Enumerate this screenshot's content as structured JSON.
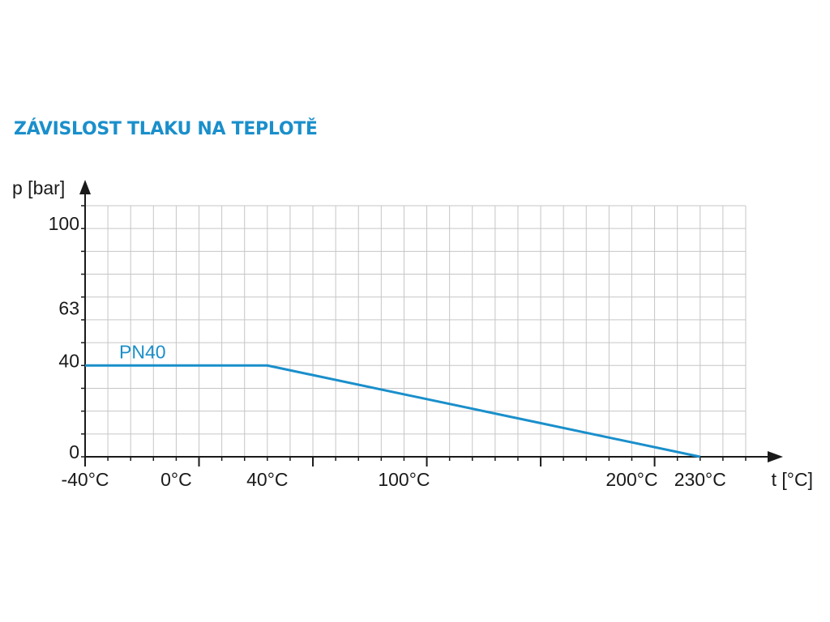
{
  "colors": {
    "accent": "#1a8fcb",
    "grid": "#c6c6c6",
    "axis": "#1a1a1a",
    "text": "#1a1a1a"
  },
  "chart_data": {
    "type": "line",
    "title": "ZÁVISLOST TLAKU NA TEPLOTĚ",
    "xlabel": "t [°C]",
    "ylabel": "p [bar]",
    "x_tick_labels": [
      {
        "value": -40,
        "label": "-40°C"
      },
      {
        "value": 0,
        "label": "0°C"
      },
      {
        "value": 40,
        "label": "40°C"
      },
      {
        "value": 100,
        "label": "100°C"
      },
      {
        "value": 200,
        "label": "200°C"
      },
      {
        "value": 230,
        "label": "230°C"
      }
    ],
    "y_tick_labels": [
      {
        "value": 0,
        "label": "0"
      },
      {
        "value": 40,
        "label": "40"
      },
      {
        "value": 63,
        "label": "63"
      },
      {
        "value": 100,
        "label": "100"
      }
    ],
    "xlim": [
      -40,
      250
    ],
    "ylim": [
      0,
      110
    ],
    "grid": true,
    "series": [
      {
        "name": "PN40",
        "points": [
          {
            "x": -40,
            "y": 40
          },
          {
            "x": 40,
            "y": 40
          },
          {
            "x": 230,
            "y": 0
          }
        ]
      }
    ]
  }
}
